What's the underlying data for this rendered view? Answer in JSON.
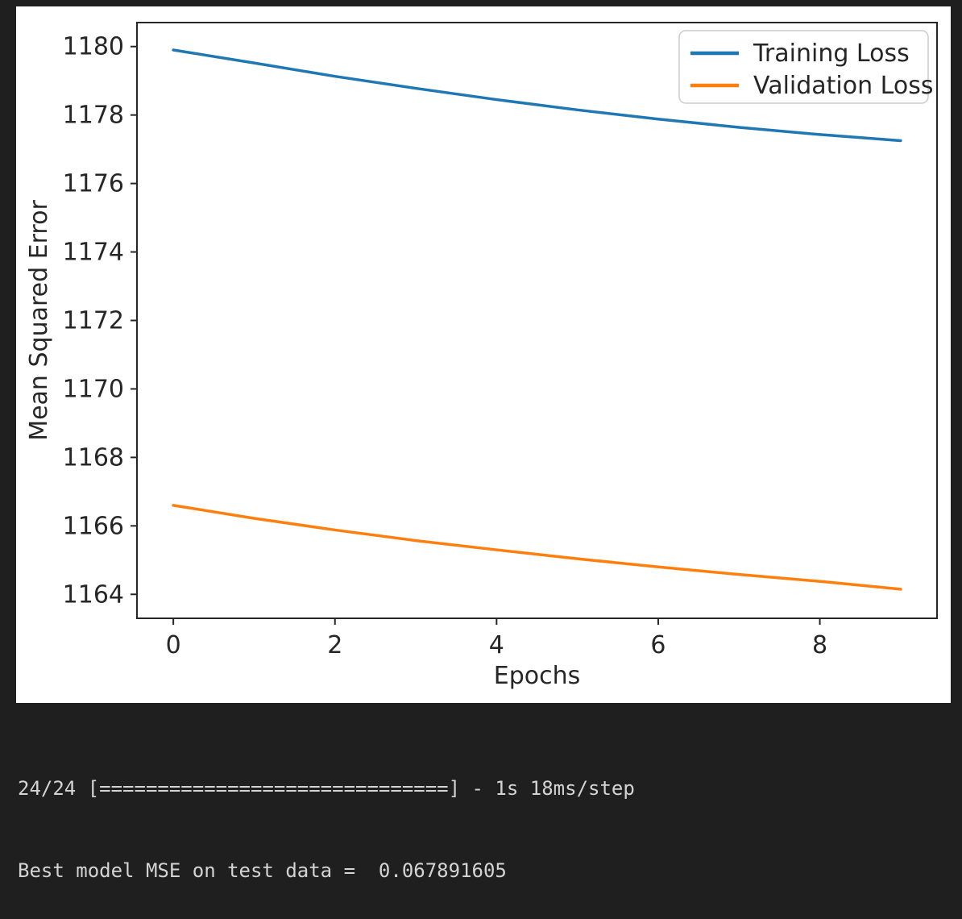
{
  "figure": {
    "background": "#ffffff"
  },
  "terminal": {
    "progress_line": "24/24 [==============================] - 1s 18ms/step",
    "result_line": "Best model MSE on test data =  0.067891605",
    "text_color": "#d4d4d4",
    "background": "#1f1f1f"
  },
  "chart_data": {
    "type": "line",
    "title": "",
    "xlabel": "Epochs",
    "ylabel": "Mean Squared Error",
    "x": [
      0,
      1,
      2,
      3,
      4,
      5,
      6,
      7,
      8,
      9
    ],
    "series": [
      {
        "name": "Training Loss",
        "color": "#1f77b4",
        "values": [
          1179.9,
          1179.52,
          1179.13,
          1178.78,
          1178.45,
          1178.15,
          1177.88,
          1177.64,
          1177.43,
          1177.25
        ]
      },
      {
        "name": "Validation Loss",
        "color": "#ff7f0e",
        "values": [
          1166.6,
          1166.22,
          1165.88,
          1165.57,
          1165.3,
          1165.04,
          1164.8,
          1164.58,
          1164.38,
          1164.15
        ]
      }
    ],
    "xlim": [
      -0.45,
      9.45
    ],
    "ylim": [
      1163.3,
      1180.7
    ],
    "xticks": [
      0,
      2,
      4,
      6,
      8
    ],
    "yticks": [
      1164,
      1166,
      1168,
      1170,
      1172,
      1174,
      1176,
      1178,
      1180
    ],
    "grid": false,
    "legend_position": "upper right",
    "axis_color": "#262626",
    "legend_edge_color": "#cccccc",
    "legend_face_color": "#ffffff"
  }
}
